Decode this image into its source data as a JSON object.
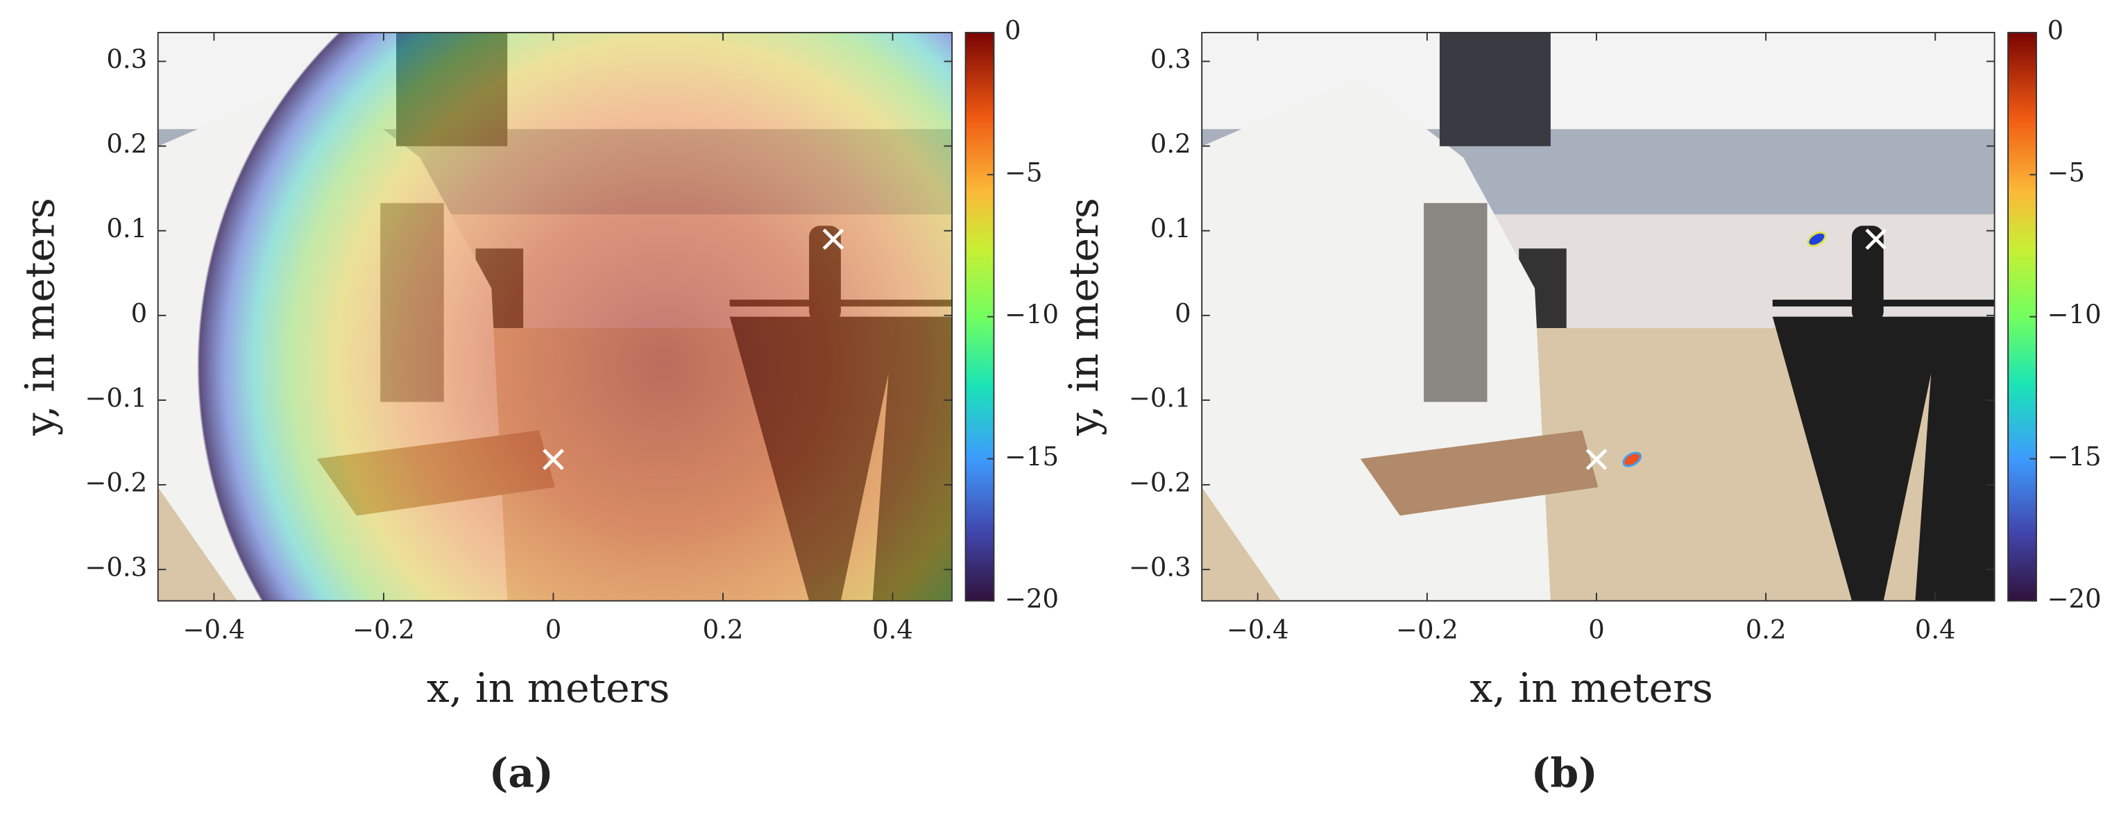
{
  "chart_data": [
    {
      "type": "scatter",
      "title": "(a)",
      "xlabel": "x, in meters",
      "ylabel": "y, in meters",
      "x": [
        0,
        0.33
      ],
      "values": [
        -0.17,
        0.09
      ],
      "color": "#ffffff",
      "xlim": [
        -0.466,
        0.47
      ],
      "ylim": [
        -0.337,
        0.334
      ],
      "xticks": [
        {
          "value": -0.4,
          "label": "−0.4"
        },
        {
          "value": -0.2,
          "label": "−0.2"
        },
        0,
        0.2,
        0.4
      ],
      "yticks": [
        {
          "value": -0.3,
          "label": "−0.3"
        },
        {
          "value": -0.2,
          "label": "−0.2"
        },
        {
          "value": -0.1,
          "label": "−0.1"
        },
        0,
        0.1,
        0.2,
        0.3
      ],
      "clim": [
        -20,
        0
      ],
      "cticks": [
        {
          "value": -20,
          "label": "−20"
        },
        {
          "value": -15,
          "label": "−15"
        },
        {
          "value": -10,
          "label": "−10"
        },
        {
          "value": -5,
          "label": "−5"
        },
        0
      ]
    },
    {
      "type": "scatter",
      "title": "(b)",
      "xlabel": "x, in meters",
      "ylabel": "y, in meters",
      "x": [
        0,
        0.33
      ],
      "values": [
        -0.17,
        0.09
      ],
      "color": "#ffffff",
      "xlim": [
        -0.466,
        0.47
      ],
      "ylim": [
        -0.337,
        0.334
      ],
      "xticks": [
        {
          "value": -0.4,
          "label": "−0.4"
        },
        {
          "value": -0.2,
          "label": "−0.2"
        },
        0,
        0.2,
        0.4
      ],
      "yticks": [
        {
          "value": -0.3,
          "label": "−0.3"
        },
        {
          "value": -0.2,
          "label": "−0.2"
        },
        {
          "value": -0.1,
          "label": "−0.1"
        },
        0,
        0.1,
        0.2,
        0.3
      ],
      "clim": [
        -20,
        0
      ],
      "cticks": [
        {
          "value": -20,
          "label": "−20"
        },
        {
          "value": -15,
          "label": "−15"
        },
        {
          "value": -10,
          "label": "−10"
        },
        {
          "value": -5,
          "label": "−5"
        },
        0
      ]
    }
  ]
}
